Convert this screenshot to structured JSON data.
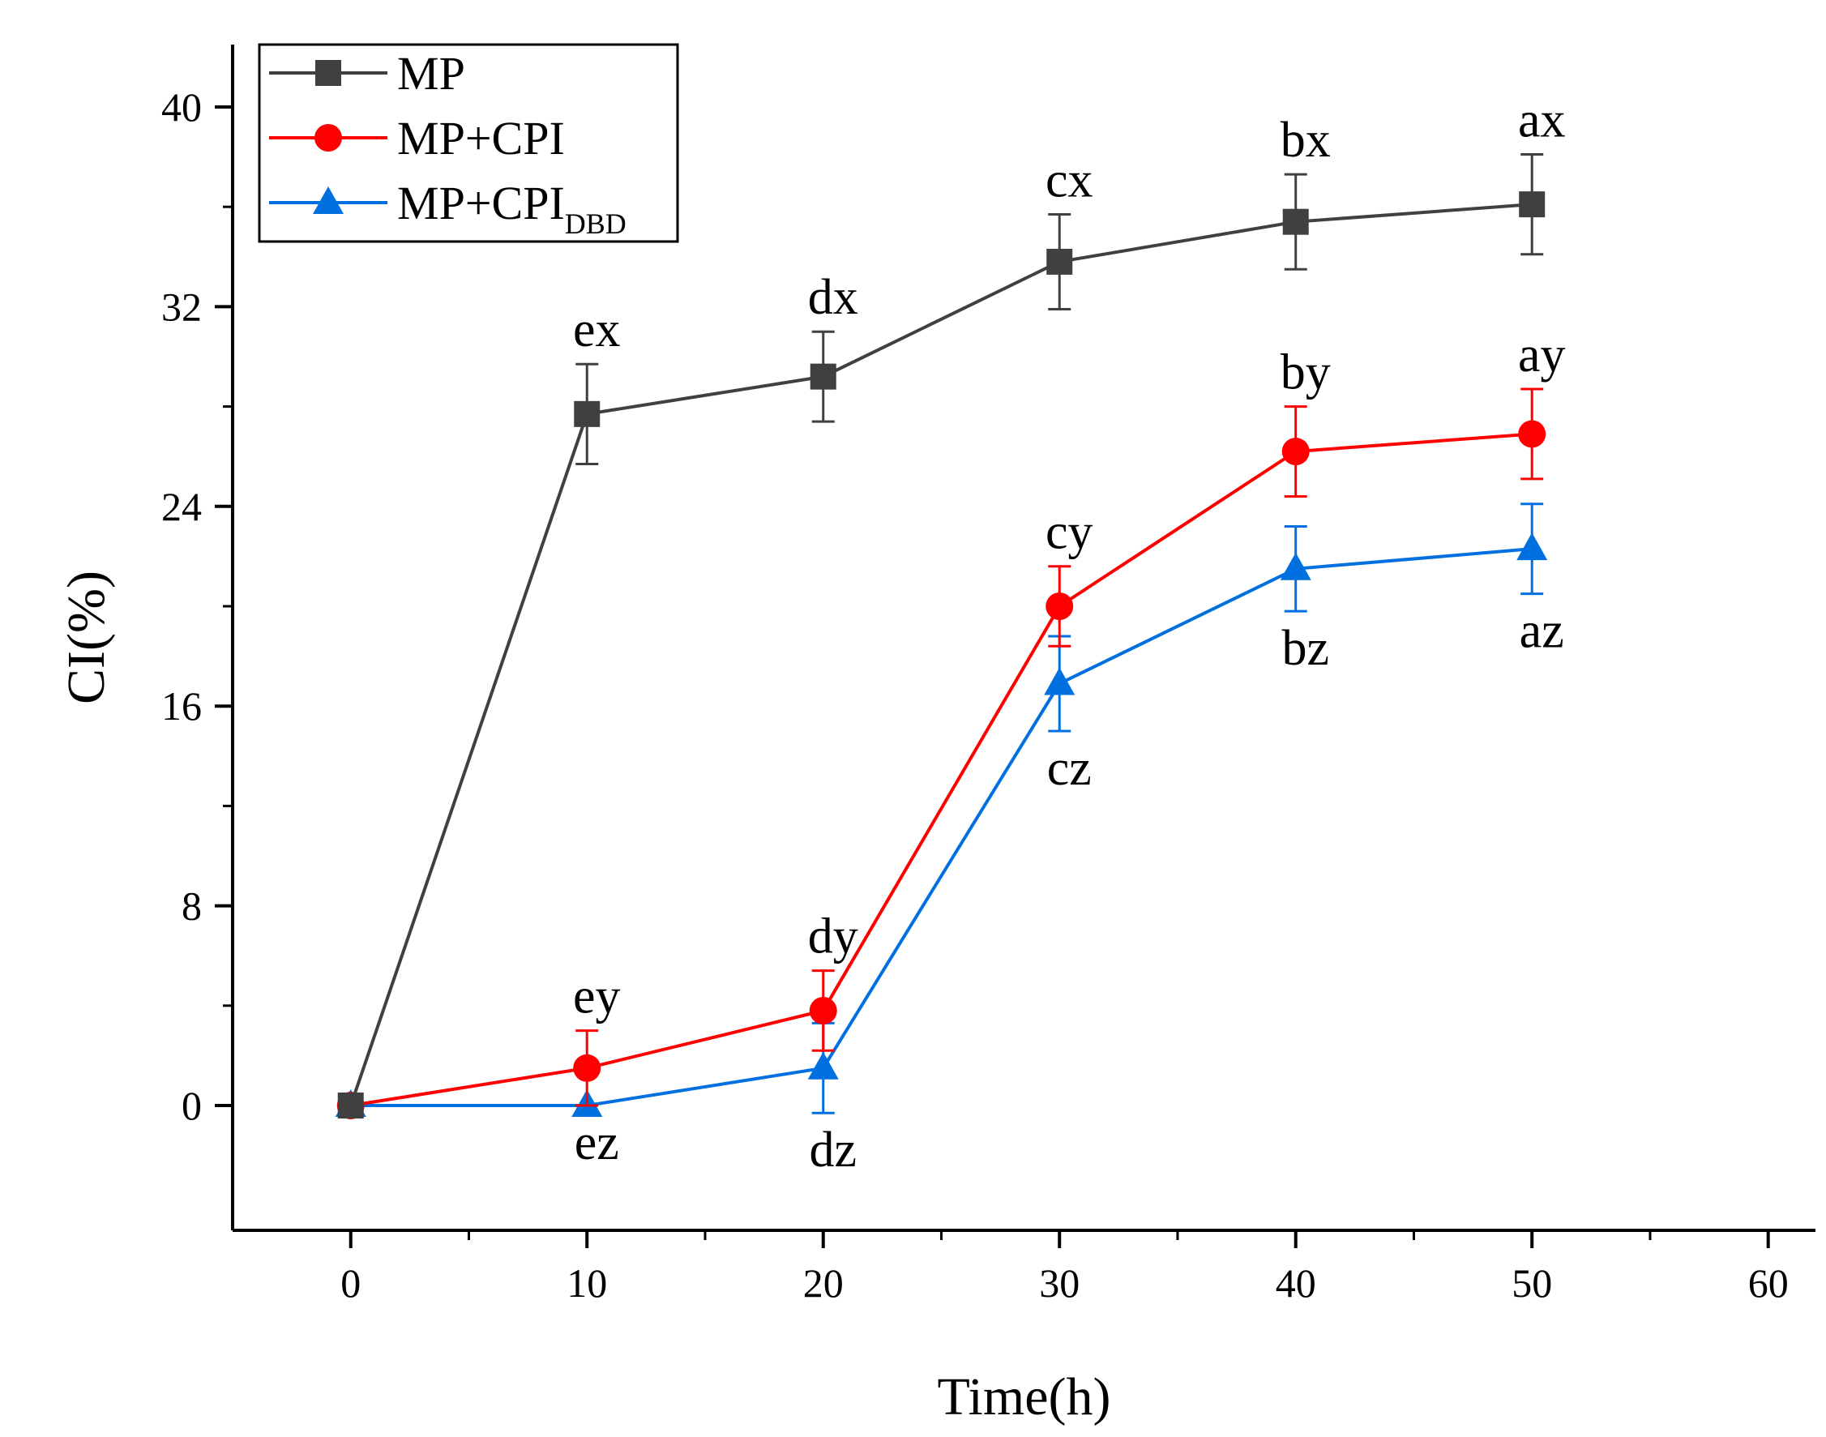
{
  "chart_data": {
    "type": "line",
    "xlabel": "Time(h)",
    "ylabel": "CI(%)",
    "xlim": [
      -5,
      62
    ],
    "ylim": [
      -5,
      42.5
    ],
    "x_ticks": [
      0,
      10,
      20,
      30,
      40,
      50,
      60
    ],
    "y_ticks": [
      0,
      8,
      16,
      24,
      32,
      40
    ],
    "grid": false,
    "legend_position": "top-left",
    "x": [
      0,
      10,
      20,
      30,
      40,
      50
    ],
    "series": [
      {
        "name": "MP",
        "legend_label": {
          "main": "MP",
          "subscript": ""
        },
        "color": "#404040",
        "marker": "square",
        "values": [
          0,
          27.7,
          29.2,
          33.8,
          35.4,
          36.1
        ],
        "errors": [
          0,
          2.0,
          1.8,
          1.9,
          1.9,
          2.0
        ],
        "labels": [
          "",
          "ex",
          "dx",
          "cx",
          "bx",
          "ax"
        ],
        "label_position": "above"
      },
      {
        "name": "MP+CPI",
        "legend_label": {
          "main": "MP+CPI",
          "subscript": ""
        },
        "color": "#ff0000",
        "marker": "circle",
        "values": [
          0,
          1.5,
          3.8,
          20.0,
          26.2,
          26.9
        ],
        "errors": [
          0,
          1.5,
          1.6,
          1.6,
          1.8,
          1.8
        ],
        "labels": [
          "",
          "ey",
          "dy",
          "cy",
          "by",
          "ay"
        ],
        "label_position": "above"
      },
      {
        "name": "MP+CPIDBD",
        "legend_label": {
          "main": "MP+CPI",
          "subscript": "DBD"
        },
        "color": "#0070e0",
        "marker": "triangle",
        "values": [
          0,
          0,
          1.5,
          16.9,
          21.5,
          22.3
        ],
        "errors": [
          0,
          0,
          1.8,
          1.9,
          1.7,
          1.8
        ],
        "labels": [
          "",
          "ez",
          "dz",
          "cz",
          "bz",
          "az"
        ],
        "label_position": "below"
      }
    ]
  }
}
